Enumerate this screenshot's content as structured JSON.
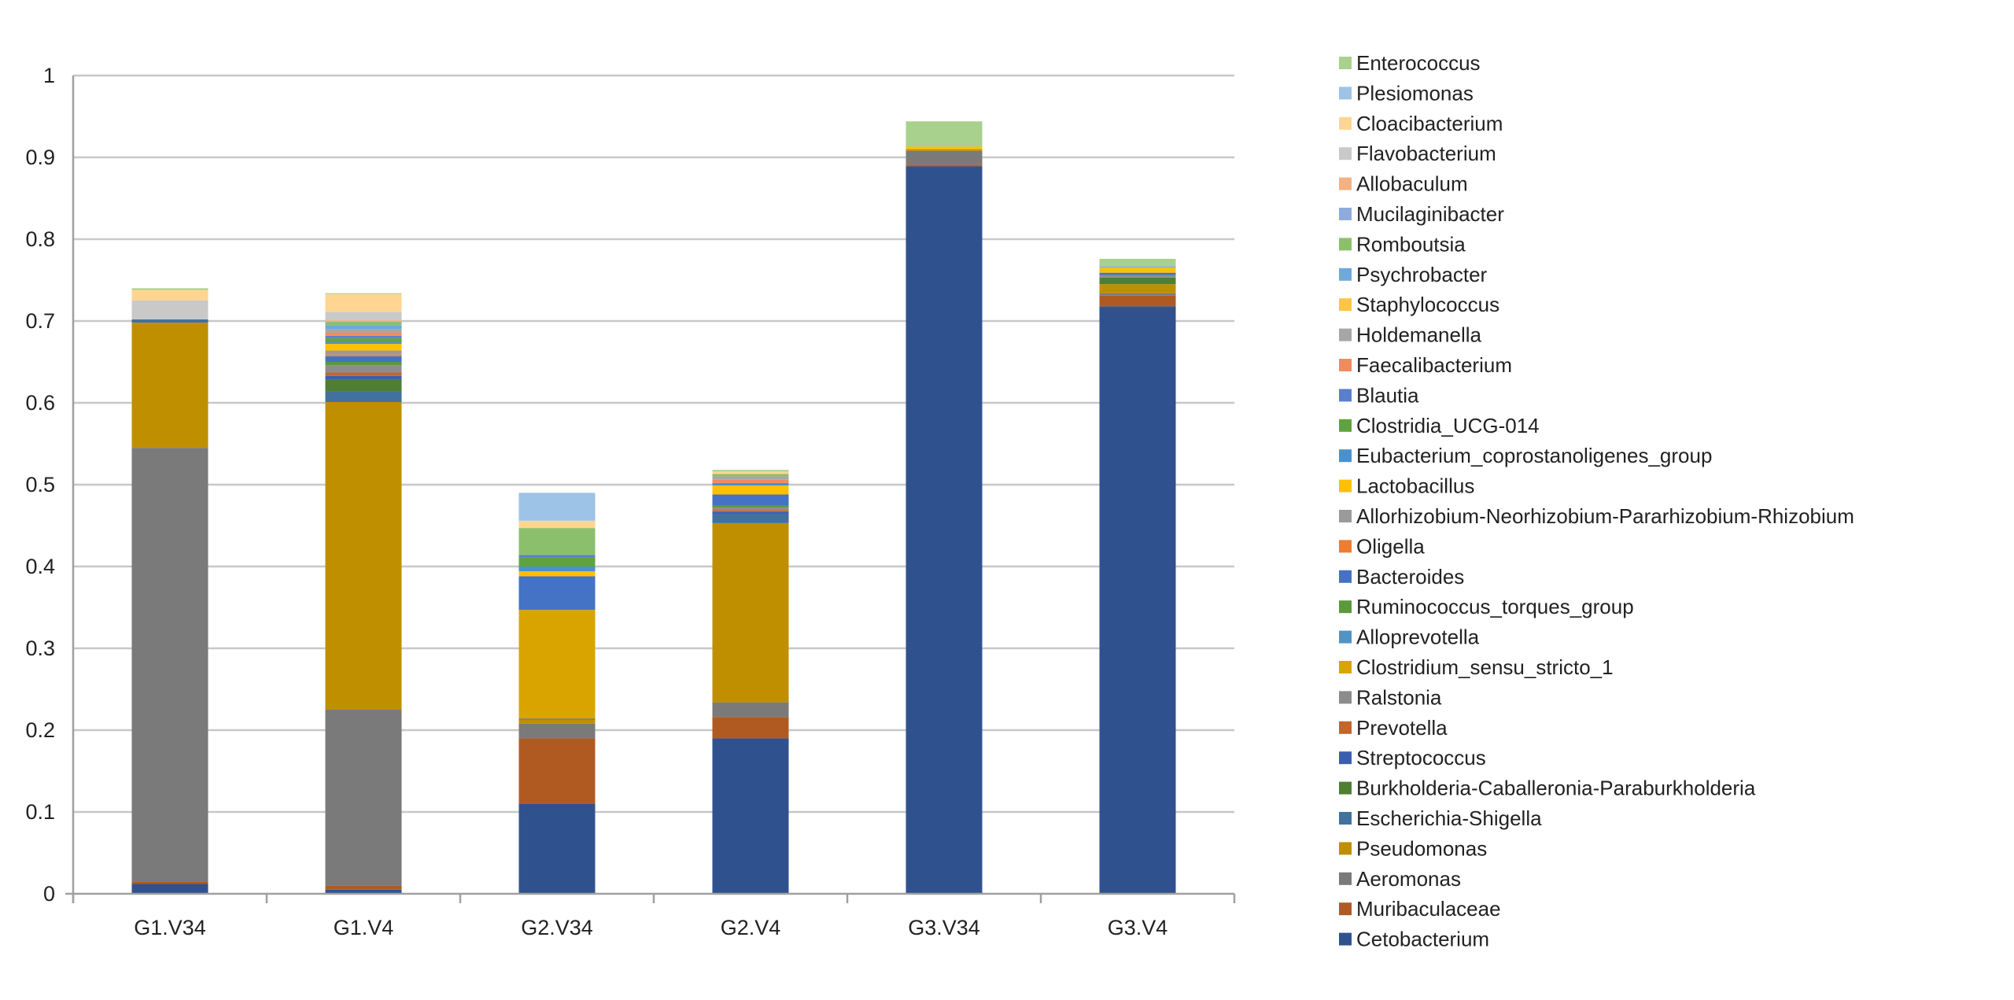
{
  "chart_data": {
    "type": "bar",
    "stacked": true,
    "title": "",
    "xlabel": "",
    "ylabel": "",
    "ylim": [
      0,
      1
    ],
    "yticks": [
      "0",
      "0.1",
      "0.2",
      "0.3",
      "0.4",
      "0.5",
      "0.6",
      "0.7",
      "0.8",
      "0.9",
      "1"
    ],
    "grid": true,
    "legend_placement": "right",
    "categories": [
      "G1.V34",
      "G1.V4",
      "G2.V34",
      "G2.V4",
      "G3.V34",
      "G3.V4"
    ],
    "series": [
      {
        "name": "Cetobacterium",
        "color": "#2f528f",
        "values": [
          0.012,
          0.005,
          0.11,
          0.19,
          0.889,
          0.718
        ]
      },
      {
        "name": "Muribaculaceae",
        "color": "#b05a22",
        "values": [
          0.003,
          0.005,
          0.08,
          0.026,
          0.002,
          0.013
        ]
      },
      {
        "name": "Aeromonas",
        "color": "#7a7a7a",
        "values": [
          0.53,
          0.215,
          0.018,
          0.018,
          0.017,
          0.003
        ]
      },
      {
        "name": "Pseudomonas",
        "color": "#bf8f00",
        "values": [
          0.153,
          0.376,
          0.005,
          0.219,
          0.002,
          0.011
        ]
      },
      {
        "name": "Escherichia-Shigella",
        "color": "#41719c",
        "values": [
          0.004,
          0.013,
          0.001,
          0.011,
          0,
          0
        ]
      },
      {
        "name": "Burkholderia-Caballeronia-Paraburkholderia",
        "color": "#4e7f32",
        "values": [
          0,
          0.014,
          0,
          0,
          0,
          0.008
        ]
      },
      {
        "name": "Streptococcus",
        "color": "#3a5fb0",
        "values": [
          0,
          0.005,
          0,
          0.003,
          0,
          0
        ]
      },
      {
        "name": "Prevotella",
        "color": "#c5652a",
        "values": [
          0,
          0.004,
          0,
          0.002,
          0,
          0
        ]
      },
      {
        "name": "Ralstonia",
        "color": "#8c8c8c",
        "values": [
          0,
          0.009,
          0,
          0.003,
          0,
          0.003
        ]
      },
      {
        "name": "Clostridium_sensu_stricto_1",
        "color": "#d9a400",
        "values": [
          0,
          0,
          0.133,
          0,
          0,
          0
        ]
      },
      {
        "name": "Alloprevotella",
        "color": "#4f94c8",
        "values": [
          0,
          0,
          0,
          0,
          0,
          0
        ]
      },
      {
        "name": "Ruminococcus_torques_group",
        "color": "#5a9a3a",
        "values": [
          0,
          0.004,
          0,
          0.003,
          0,
          0
        ]
      },
      {
        "name": "Bacteroides",
        "color": "#4472c4",
        "values": [
          0,
          0.007,
          0.041,
          0.013,
          0,
          0.003
        ]
      },
      {
        "name": "Oligella",
        "color": "#ed7d31",
        "values": [
          0,
          0.002,
          0,
          0,
          0,
          0
        ]
      },
      {
        "name": "Allorhizobium-Neorhizobium-Pararhizobium-Rhizobium",
        "color": "#9a9a9a",
        "values": [
          0,
          0.005,
          0,
          0,
          0,
          0
        ]
      },
      {
        "name": "Lactobacillus",
        "color": "#ffc000",
        "values": [
          0,
          0.008,
          0.006,
          0.011,
          0.003,
          0.006
        ]
      },
      {
        "name": "Eubacterium_coprostanoligenes_group",
        "color": "#4a90cf",
        "values": [
          0,
          0.002,
          0.006,
          0.003,
          0,
          0
        ]
      },
      {
        "name": "Clostridia_UCG-014",
        "color": "#5fa33d",
        "values": [
          0,
          0.005,
          0.011,
          0,
          0,
          0
        ]
      },
      {
        "name": "Blautia",
        "color": "#5b7fcf",
        "values": [
          0,
          0.003,
          0.003,
          0,
          0,
          0
        ]
      },
      {
        "name": "Faecalibacterium",
        "color": "#f08c5a",
        "values": [
          0,
          0.004,
          0,
          0.004,
          0,
          0
        ]
      },
      {
        "name": "Holdemanella",
        "color": "#a6a6a6",
        "values": [
          0,
          0.004,
          0,
          0.004,
          0,
          0
        ]
      },
      {
        "name": "Staphylococcus",
        "color": "#ffc543",
        "values": [
          0,
          0,
          0,
          0,
          0,
          0
        ]
      },
      {
        "name": "Psychrobacter",
        "color": "#6fa8dc",
        "values": [
          0,
          0.005,
          0,
          0,
          0,
          0
        ]
      },
      {
        "name": "Romboutsia",
        "color": "#8cbf6b",
        "values": [
          0,
          0.004,
          0.033,
          0.003,
          0,
          0
        ]
      },
      {
        "name": "Mucilaginibacter",
        "color": "#8faadc",
        "values": [
          0,
          0,
          0,
          0,
          0,
          0.002
        ]
      },
      {
        "name": "Allobaculum",
        "color": "#f4b183",
        "values": [
          0,
          0.002,
          0,
          0,
          0,
          0
        ]
      },
      {
        "name": "Flavobacterium",
        "color": "#c9c9c9",
        "values": [
          0.023,
          0.01,
          0,
          0,
          0,
          0
        ]
      },
      {
        "name": "Cloacibacterium",
        "color": "#ffd591",
        "values": [
          0.013,
          0.022,
          0.009,
          0.003,
          0,
          0
        ]
      },
      {
        "name": "Plesiomonas",
        "color": "#9dc3e6",
        "values": [
          0,
          0,
          0.034,
          0,
          0,
          0
        ]
      },
      {
        "name": "Enterococcus",
        "color": "#a9d18e",
        "values": [
          0.002,
          0.001,
          0,
          0.002,
          0.031,
          0.009
        ]
      }
    ]
  }
}
